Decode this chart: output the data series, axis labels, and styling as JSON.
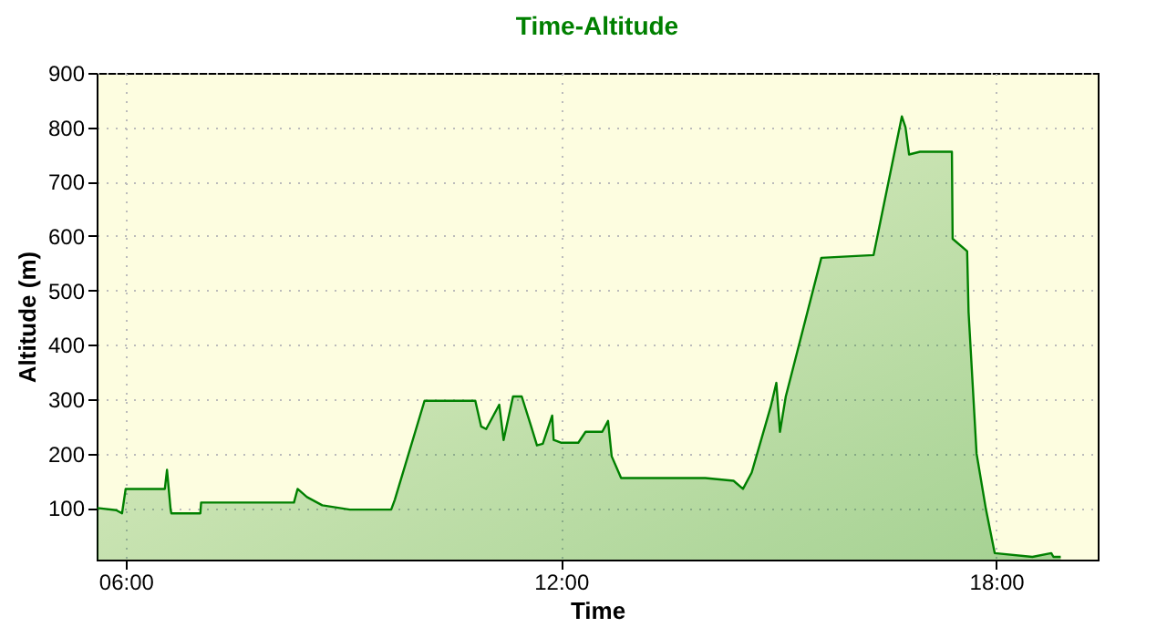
{
  "chart_data": {
    "type": "area",
    "title": "Time-Altitude",
    "xlabel": "Time",
    "ylabel": "Altitude (m)",
    "xlim": [
      5.6,
      19.4
    ],
    "ylim": [
      5,
      900
    ],
    "xticks": [
      {
        "value": 6,
        "label": "06:00"
      },
      {
        "value": 12,
        "label": "12:00"
      },
      {
        "value": 18,
        "label": "18:00"
      }
    ],
    "yticks": [
      100,
      200,
      300,
      400,
      500,
      600,
      700,
      800,
      900
    ],
    "grid": true,
    "series": [
      {
        "color": "#008000",
        "x": [
          5.61,
          5.87,
          5.95,
          6.0,
          6.54,
          6.57,
          6.62,
          6.63,
          7.03,
          7.04,
          8.32,
          8.37,
          8.5,
          8.71,
          9.09,
          9.66,
          9.71,
          10.12,
          10.82,
          10.9,
          10.97,
          11.15,
          11.21,
          11.34,
          11.46,
          11.59,
          11.67,
          11.75,
          11.88,
          11.9,
          12.0,
          12.24,
          12.34,
          12.57,
          12.65,
          12.7,
          12.83,
          13.99,
          14.38,
          14.51,
          14.63,
          14.89,
          14.97,
          15.02,
          15.1,
          15.59,
          16.31,
          16.7,
          16.75,
          16.8,
          16.95,
          17.39,
          17.4,
          17.6,
          17.62,
          17.73,
          17.86,
          17.98,
          18.5,
          18.76,
          18.79,
          18.89
        ],
        "values": [
          100,
          96,
          90,
          135,
          135,
          170,
          97,
          90,
          90,
          110,
          110,
          135,
          120,
          105,
          97,
          97,
          115,
          297,
          297,
          250,
          245,
          290,
          225,
          305,
          305,
          250,
          215,
          218,
          270,
          225,
          220,
          220,
          240,
          240,
          260,
          195,
          155,
          155,
          150,
          135,
          165,
          285,
          330,
          240,
          305,
          560,
          565,
          820,
          800,
          750,
          755,
          755,
          595,
          572,
          460,
          200,
          97,
          17,
          10,
          17,
          10,
          10
        ]
      }
    ]
  }
}
